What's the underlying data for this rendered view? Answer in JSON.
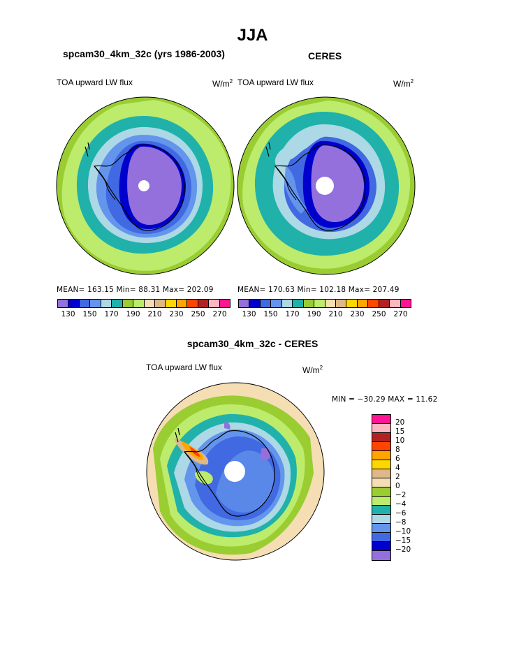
{
  "figure": {
    "title": "JJA"
  },
  "panels": [
    {
      "subtitle": "spcam30_4km_32c (yrs 1986-2003)",
      "variable": "TOA upward LW flux",
      "units_base": "W/m",
      "units_exp": "2",
      "stats": "MEAN=  163.15   Min=   88.31   Max=  202.09"
    },
    {
      "subtitle": "CERES",
      "variable": "TOA upward LW flux",
      "units_base": "W/m",
      "units_exp": "2",
      "stats": "MEAN=  170.63   Min=  102.18   Max=  207.49"
    },
    {
      "subtitle": "spcam30_4km_32c - CERES",
      "variable": "TOA upward LW flux",
      "units_base": "W/m",
      "units_exp": "2",
      "stats": "MIN = −30.29  MAX =   11.62"
    }
  ],
  "colorbar_abs": {
    "colors": [
      "#9370DB",
      "#0000CD",
      "#4169E1",
      "#6495ED",
      "#ADD8E6",
      "#20B2AA",
      "#9ACD32",
      "#BDEB6B",
      "#F5DEB3",
      "#DEB887",
      "#FFD700",
      "#FFA500",
      "#FF4500",
      "#B22222",
      "#FFB6C1",
      "#FF1493"
    ],
    "labels": [
      "130",
      "150",
      "170",
      "190",
      "210",
      "230",
      "250",
      "270"
    ]
  },
  "colorbar_diff": {
    "colors": [
      "#FF1493",
      "#FFB6C1",
      "#B22222",
      "#FF4500",
      "#FFA500",
      "#FFD700",
      "#DEB887",
      "#F5DEB3",
      "#9ACD32",
      "#BDEB6B",
      "#20B2AA",
      "#ADD8E6",
      "#6495ED",
      "#4169E1",
      "#0000CD",
      "#9370DB"
    ],
    "labels": [
      "20",
      "15",
      "10",
      "8",
      "6",
      "4",
      "2",
      "0",
      "−2",
      "−4",
      "−6",
      "−8",
      "−10",
      "−15",
      "−20"
    ]
  }
}
